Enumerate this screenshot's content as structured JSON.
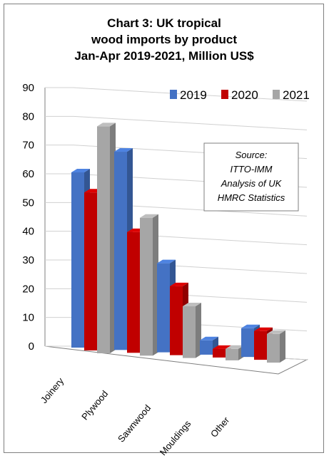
{
  "chart_data": {
    "type": "bar",
    "title_lines": [
      "Chart 3: UK tropical",
      "wood imports by product",
      "Jan-Apr 2019-2021, Million US$"
    ],
    "categories": [
      "Joinery",
      "Plywood",
      "Sawnwood",
      "Mouldings",
      "Other"
    ],
    "series": [
      {
        "name": "2019",
        "color": "#4472c4",
        "values": [
          61,
          69,
          31,
          5,
          10
        ]
      },
      {
        "name": "2020",
        "color": "#c00000",
        "values": [
          55,
          42,
          24,
          3,
          10
        ]
      },
      {
        "name": "2021",
        "color": "#a6a6a6",
        "values": [
          79,
          48,
          18,
          4,
          10
        ]
      }
    ],
    "ylim": [
      0,
      90
    ],
    "yticks": [
      0,
      10,
      20,
      30,
      40,
      50,
      60,
      70,
      80,
      90
    ],
    "grid": true,
    "legend_position": "top-right",
    "annotation_lines": [
      "Source:",
      "ITTO-IMM",
      "Analysis of UK",
      "HMRC Statistics"
    ]
  }
}
